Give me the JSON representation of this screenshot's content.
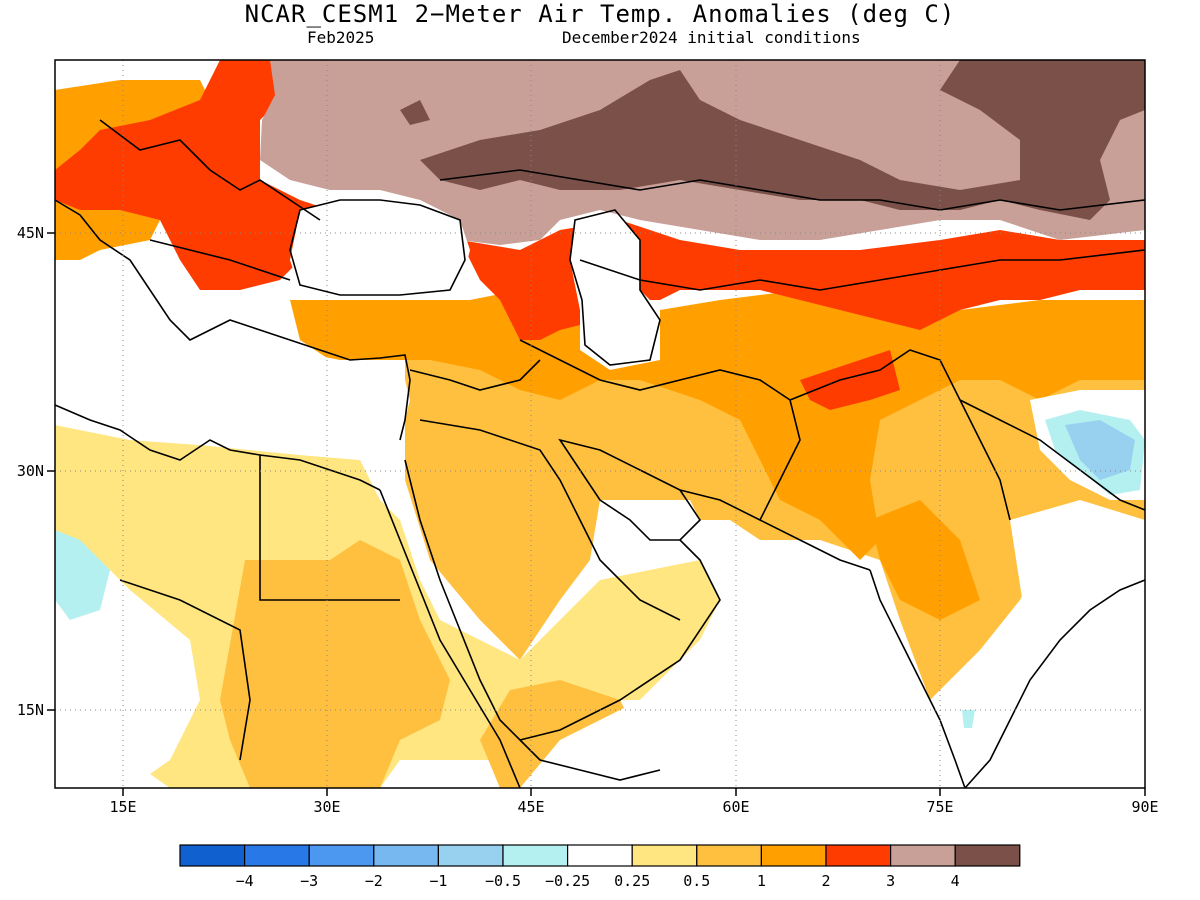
{
  "title": "NCAR_CESM1 2−Meter Air Temp. Anomalies (deg C)",
  "valid_month": "Feb2025",
  "init_conditions": "December2024 initial conditions",
  "map": {
    "lon_range": [
      10,
      90
    ],
    "lat_range": [
      10,
      56
    ],
    "lon_ticks": [
      "15E",
      "30E",
      "45E",
      "60E",
      "75E",
      "90E"
    ],
    "lat_ticks": [
      "45N",
      "30N",
      "15N"
    ],
    "gridlines": "dotted"
  },
  "colorbar": {
    "boundaries": [
      "−4",
      "−3",
      "−2",
      "−1",
      "−0.5",
      "−0.25",
      "0.25",
      "0.5",
      "1",
      "2",
      "3",
      "4"
    ],
    "colors": [
      "#1060d0",
      "#2878e8",
      "#4c98f0",
      "#78b8f0",
      "#98d0f0",
      "#b4f0f0",
      "#ffffff",
      "#ffe680",
      "#ffc040",
      "#ffa000",
      "#ff3c00",
      "#c8a098",
      "#7a5048"
    ]
  },
  "anomaly_regions": [
    {
      "name": "brown-band-central-asia",
      "class": "above 4"
    },
    {
      "name": "rosy-band-north",
      "class": "3 to 4"
    },
    {
      "name": "red-europe-caspian",
      "class": "2 to 3"
    },
    {
      "name": "orange-iran-turkey",
      "class": "1 to 2"
    },
    {
      "name": "light-orange-arabia-india",
      "class": "0.5 to 1"
    },
    {
      "name": "yellow-africa-arabia",
      "class": "0.25 to 0.5"
    },
    {
      "name": "lightblue-tibet",
      "class": "-0.5 to -0.25"
    }
  ]
}
